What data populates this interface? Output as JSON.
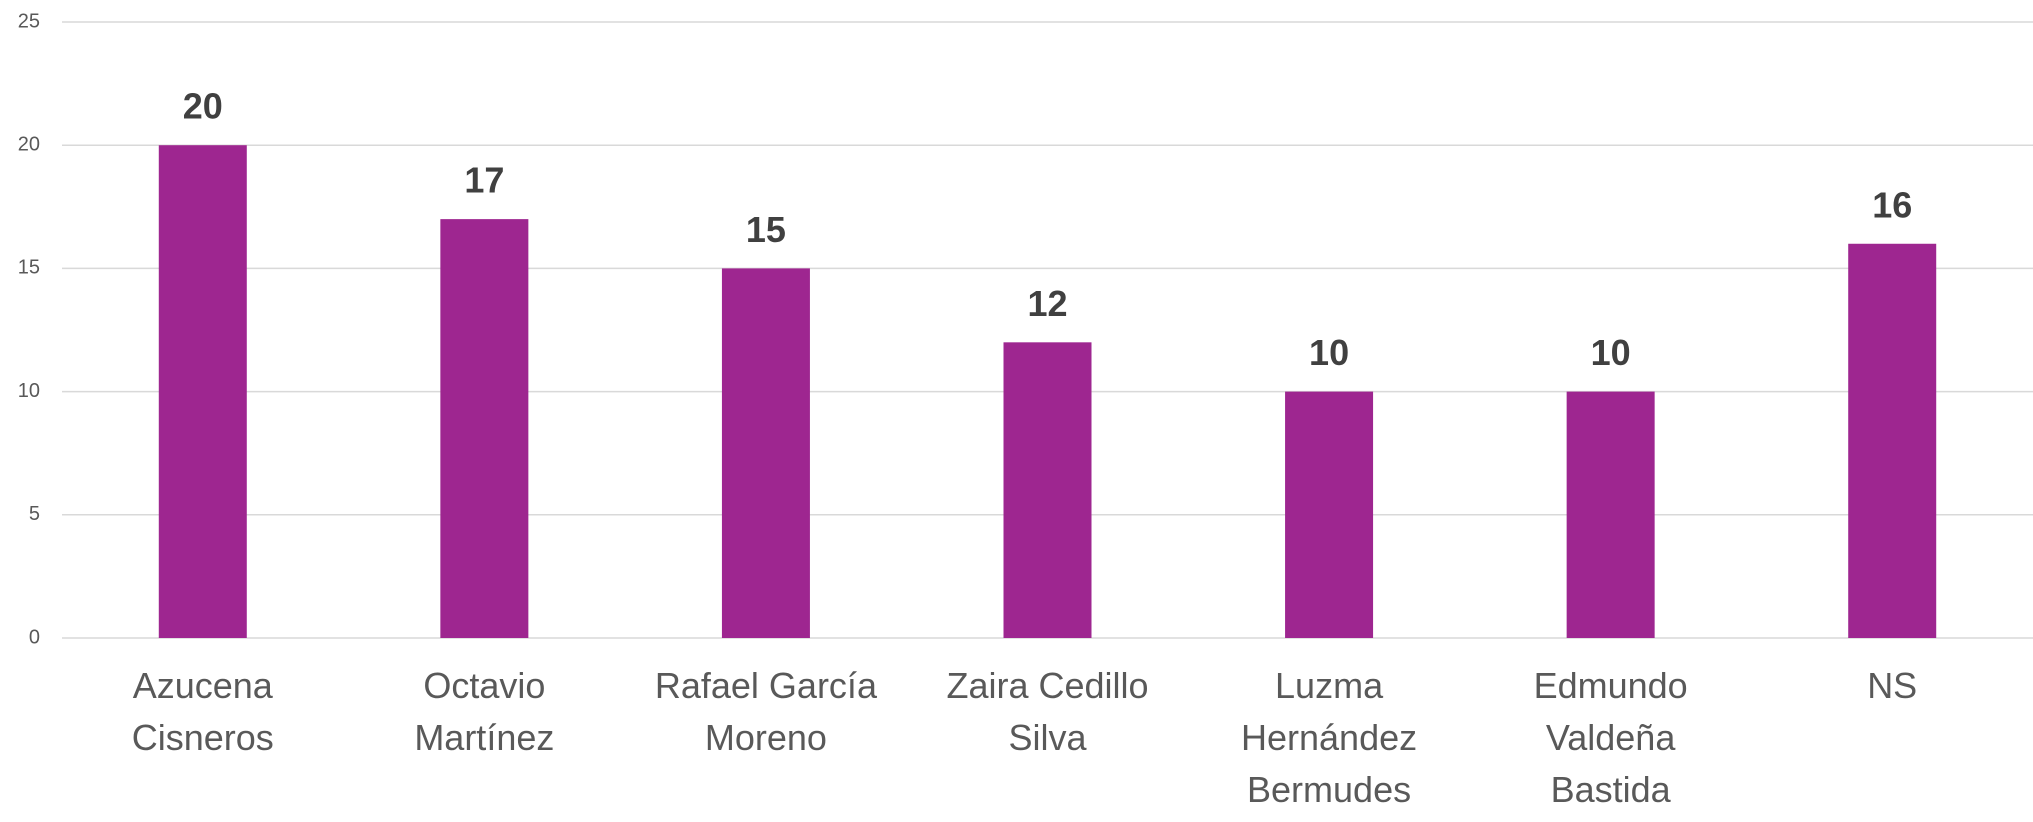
{
  "chart_data": {
    "type": "bar",
    "categories": [
      "Azucena Cisneros",
      "Octavio Martínez",
      "Rafael García Moreno",
      "Zaira Cedillo Silva",
      "Luzma Hernández Bermudes",
      "Edmundo Valdeña Bastida",
      "NS"
    ],
    "values": [
      20,
      17,
      15,
      12,
      10,
      10,
      16
    ],
    "color": "#9e2690",
    "ylim": [
      0,
      25
    ],
    "yticks": [
      0,
      5,
      10,
      15,
      20,
      25
    ],
    "grid": true
  }
}
